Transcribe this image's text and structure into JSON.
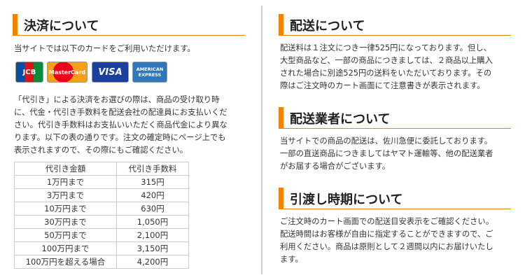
{
  "left": {
    "heading": "決済について",
    "intro": "当サイトでは以下のカードをご利用いただけます。",
    "cards": [
      "JCB",
      "MasterCard",
      "VISA",
      "AMERICAN EXPRESS"
    ],
    "paragraph_lines": [
      "「代引き」による決済をお選びの際は、商品の受け取り時",
      "に、代金・代引き手数料を配送会社の配達員にお支払いくだ",
      "さい。代引き手数料はお支払いいただく商品代金により異な",
      "ります。以下の表の通りです。注文の確定時にページ上でも",
      "表示されますので、その際にもご確認ください。"
    ],
    "table": {
      "header": [
        "代引き金額",
        "代引き手数料"
      ],
      "rows": [
        [
          "1万円まで",
          "315円"
        ],
        [
          "3万円まで",
          "420円"
        ],
        [
          "10万円まで",
          "630円"
        ],
        [
          "30万円まで",
          "1,050円"
        ],
        [
          "50万円まで",
          "2,100円"
        ],
        [
          "100万円まで",
          "3,150円"
        ],
        [
          "100万円を超える場合",
          "4,200円"
        ]
      ]
    }
  },
  "right": {
    "sections": [
      {
        "heading": "配送について",
        "lines": [
          "配送料は１注文につき一律525円になっております。但し、",
          "大型商品など、一部の商品につきましては、２商品以上購入",
          "された場合に別途525円の送料をいただいております。その",
          "際はご注文時のカート画面にて注意書きが表示されます。"
        ]
      },
      {
        "heading": "配送業者について",
        "lines": [
          "当サイトでの商品の配送は、佐川急便に委託しております。",
          "一部の直送商品につきましてはヤマト運輸等、他の配送業者",
          "がお届する場合がございます。"
        ]
      },
      {
        "heading": "引渡し時期について",
        "lines": [
          "ご注文時のカート画面での配送目安表示をご確認ください。",
          "配送時間はお客様が自由に指定することができますので、ご",
          "利用ください。商品は原則として２週間以内にお届けいたし",
          "ます。"
        ]
      }
    ]
  }
}
